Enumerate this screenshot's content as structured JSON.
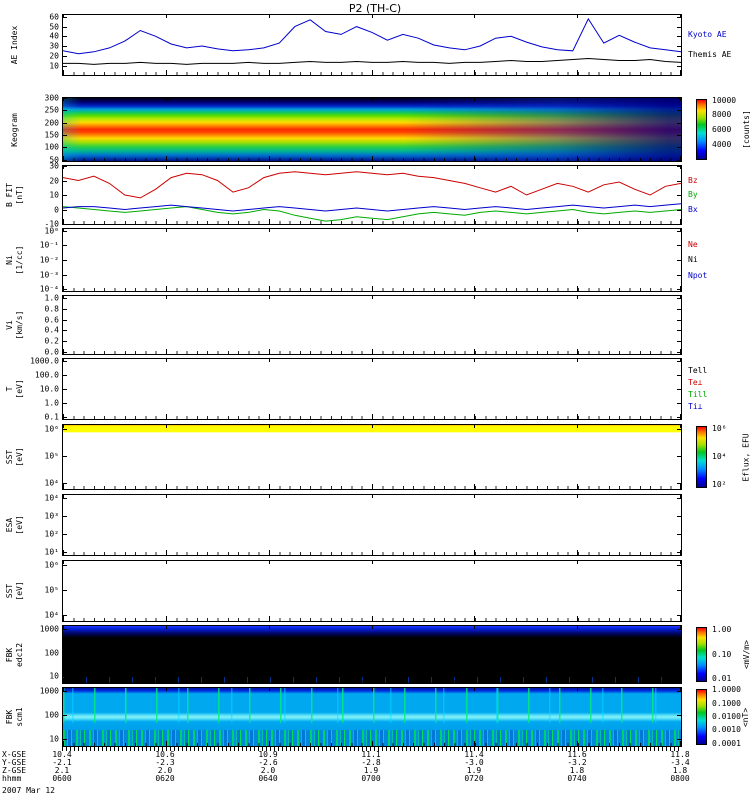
{
  "title": "P2 (TH-C)",
  "footer_date": "2007 Mar 12",
  "x_axis": {
    "ticks": [
      "0600",
      "0620",
      "0640",
      "0700",
      "0720",
      "0740",
      "0800"
    ],
    "time_row_label": "hhmm",
    "coordinate_rows": [
      {
        "label": "X-GSE",
        "values": [
          "10.4",
          "10.6",
          "10.9",
          "11.1",
          "11.4",
          "11.6",
          "11.8"
        ]
      },
      {
        "label": "Y-GSE",
        "values": [
          "-2.1",
          "-2.3",
          "-2.6",
          "-2.8",
          "-3.0",
          "-3.2",
          "-3.4"
        ]
      },
      {
        "label": "Z-GSE",
        "values": [
          "2.1",
          "2.0",
          "2.0",
          "1.9",
          "1.9",
          "1.8",
          "1.8"
        ]
      }
    ]
  },
  "colors": {
    "kyoto_ae": "#0000cc",
    "themis_ae": "#000000",
    "bz": "#cc0000",
    "by": "#00aa00",
    "bx": "#0000cc",
    "spectrogram_scale": [
      "#000090",
      "#0000ff",
      "#0090ff",
      "#00e0d0",
      "#00c820",
      "#a0e000",
      "#ffe000",
      "#ff7000",
      "#ff0000"
    ]
  },
  "chart_data": [
    {
      "id": "ae",
      "type": "line",
      "ylabel": [
        "AE Index"
      ],
      "yticks": [
        "60",
        "50",
        "40",
        "30",
        "20",
        "10"
      ],
      "ytick_span": [
        0.03,
        0.85
      ],
      "ylim": [
        0,
        62
      ],
      "x_range_hhmm": [
        "0600",
        "0800"
      ],
      "legend": [
        {
          "text": "Kyoto AE",
          "color": "#0000cc"
        },
        {
          "text": "Themis AE",
          "color": "#000000"
        }
      ],
      "series": [
        {
          "name": "Kyoto AE",
          "color": "#0000cc",
          "values": [
            25,
            22,
            24,
            28,
            35,
            46,
            40,
            32,
            28,
            30,
            27,
            25,
            26,
            28,
            33,
            50,
            57,
            45,
            42,
            50,
            44,
            36,
            42,
            38,
            31,
            28,
            26,
            30,
            38,
            40,
            34,
            29,
            26,
            25,
            58,
            33,
            41,
            34,
            28,
            26,
            24
          ]
        },
        {
          "name": "Themis AE",
          "color": "#000000",
          "values": [
            12,
            12,
            11,
            12,
            12,
            13,
            12,
            12,
            11,
            12,
            12,
            12,
            13,
            12,
            12,
            13,
            14,
            13,
            13,
            14,
            13,
            13,
            14,
            13,
            13,
            12,
            13,
            13,
            14,
            15,
            14,
            14,
            15,
            16,
            17,
            16,
            15,
            15,
            16,
            14,
            13
          ]
        }
      ]
    },
    {
      "id": "keogram",
      "type": "heatmap",
      "ylabel": [
        "Keogram"
      ],
      "yticks": [
        "300",
        "250",
        "200",
        "150",
        "100",
        "50"
      ],
      "ytick_span": [
        0,
        0.98
      ],
      "colorbar": {
        "ticks": [
          "10000",
          "8000",
          "6000",
          "4000"
        ],
        "tick_span": [
          0.03,
          0.75
        ],
        "label": "[counts]"
      },
      "heatmap": {
        "units": "counts",
        "x_bins": [
          "0600",
          "0620",
          "0640",
          "0700",
          "0720",
          "0740",
          "0800"
        ],
        "y_bins": [
          250,
          200,
          150,
          100
        ],
        "values": [
          [
            4000,
            5000,
            9000,
            9500,
            8000,
            6000,
            4500
          ],
          [
            9000,
            9500,
            10000,
            9800,
            9000,
            7000,
            5000
          ],
          [
            8000,
            8500,
            8000,
            7000,
            6500,
            6000,
            4500
          ],
          [
            5000,
            5500,
            5000,
            4800,
            4500,
            4200,
            4000
          ]
        ],
        "note": "bright auroral band 130-240 with red core ~10000 counts fading toward 0800; dark blue background ~3500 counts"
      }
    },
    {
      "id": "bfit",
      "type": "line",
      "ylabel": [
        "B FIT",
        "[nT]"
      ],
      "yticks": [
        "30",
        "20",
        "10",
        "0",
        "-10"
      ],
      "ytick_span": [
        0,
        1
      ],
      "ylim": [
        -10,
        30
      ],
      "legend": [
        {
          "text": "Bz",
          "color": "#cc0000"
        },
        {
          "text": "By",
          "color": "#00aa00"
        },
        {
          "text": "Bx",
          "color": "#0000cc"
        }
      ],
      "series": [
        {
          "name": "Bz",
          "color": "#cc0000",
          "values": [
            22,
            20,
            23,
            18,
            10,
            8,
            14,
            22,
            25,
            24,
            20,
            12,
            15,
            22,
            25,
            26,
            25,
            24,
            25,
            26,
            25,
            24,
            25,
            23,
            22,
            20,
            18,
            15,
            12,
            16,
            10,
            14,
            18,
            16,
            12,
            17,
            19,
            14,
            10,
            16,
            18
          ]
        },
        {
          "name": "By",
          "color": "#00aa00",
          "values": [
            2,
            1,
            0,
            -1,
            -2,
            -1,
            0,
            1,
            2,
            0,
            -2,
            -3,
            -2,
            0,
            -1,
            -4,
            -6,
            -8,
            -7,
            -5,
            -6,
            -7,
            -5,
            -3,
            -2,
            -3,
            -4,
            -2,
            -1,
            -2,
            -3,
            -2,
            -1,
            0,
            -2,
            -3,
            -2,
            -1,
            -2,
            -1,
            0
          ]
        },
        {
          "name": "Bx",
          "color": "#0000cc",
          "values": [
            1,
            2,
            2,
            1,
            0,
            1,
            2,
            3,
            2,
            1,
            0,
            -1,
            0,
            1,
            2,
            1,
            0,
            -1,
            0,
            1,
            0,
            -1,
            0,
            1,
            2,
            1,
            0,
            1,
            2,
            1,
            0,
            1,
            2,
            3,
            2,
            1,
            2,
            3,
            2,
            3,
            4
          ]
        }
      ]
    },
    {
      "id": "ni",
      "type": "line",
      "ylabel": [
        "Ni",
        "[1/cc]"
      ],
      "yticks": [
        "10⁰",
        "10⁻¹",
        "10⁻²",
        "10⁻³",
        "10⁻⁴"
      ],
      "ytick_span": [
        0.03,
        0.97
      ],
      "ylim": [
        0,
        1
      ],
      "legend": [
        {
          "text": "Ne",
          "color": "#cc0000"
        },
        {
          "text": "Ni",
          "color": "#000000"
        },
        {
          "text": "Npot",
          "color": "#0000cc"
        }
      ],
      "series": [],
      "note": "no data plotted in interval"
    },
    {
      "id": "vi",
      "type": "line",
      "ylabel": [
        "Vi",
        "[km/s]"
      ],
      "yticks": [
        "1.0",
        "0.8",
        "0.6",
        "0.4",
        "0.2",
        "0.0"
      ],
      "ytick_span": [
        0.03,
        0.97
      ],
      "ylim": [
        0,
        1
      ],
      "series": [],
      "note": "no data plotted in interval"
    },
    {
      "id": "temp",
      "type": "line",
      "ylabel": [
        "T",
        "[eV]"
      ],
      "yticks": [
        "1000.0",
        "100.0",
        "10.0",
        "1.0",
        "0.1"
      ],
      "ytick_span": [
        0.04,
        0.96
      ],
      "ylim": [
        0,
        1
      ],
      "legend": [
        {
          "text": "Tell",
          "color": "#000000"
        },
        {
          "text": "Te⊥",
          "color": "#cc0000"
        },
        {
          "text": "Till",
          "color": "#00aa00"
        },
        {
          "text": "Ti⊥",
          "color": "#0000cc"
        }
      ],
      "series": [],
      "note": "no data plotted in interval"
    },
    {
      "id": "sst1",
      "type": "heatmap",
      "ylabel": [
        "SST",
        "[eV]"
      ],
      "yticks": [
        "10⁶",
        "10⁵",
        "10⁴"
      ],
      "ytick_span": [
        0.06,
        0.9
      ],
      "colorbar": {
        "ticks": [
          "10⁶",
          "10⁴",
          "10²"
        ],
        "tick_span": [
          0.05,
          0.95
        ],
        "label": "Eflux, EFU"
      },
      "heatmap": {
        "features": [
          {
            "type": "band",
            "y": "top",
            "color": "#ffff00",
            "note": "solid yellow stripe across entire interval at top energy bin"
          }
        ]
      }
    },
    {
      "id": "esa",
      "type": "heatmap",
      "ylabel": [
        "ESA",
        "[eV]"
      ],
      "yticks": [
        "10⁴",
        "10³",
        "10²",
        "10¹"
      ],
      "ytick_span": [
        0.05,
        0.95
      ],
      "heatmap": {
        "features": [],
        "note": "empty panel - no data"
      }
    },
    {
      "id": "sst2",
      "type": "heatmap",
      "ylabel": [
        "SST",
        "[eV]"
      ],
      "yticks": [
        "10⁶",
        "10⁵",
        "10⁴"
      ],
      "ytick_span": [
        0.06,
        0.9
      ],
      "heatmap": {
        "features": [],
        "note": "empty panel - no data"
      }
    },
    {
      "id": "fbk1",
      "type": "heatmap",
      "ylabel": [
        "FBK",
        "edc12"
      ],
      "yticks": [
        "1000",
        "100",
        "10"
      ],
      "ytick_span": [
        0.05,
        0.88
      ],
      "colorbar": {
        "ticks": [
          "1.00",
          "0.10",
          "0.01"
        ],
        "tick_span": [
          0.05,
          0.95
        ],
        "label": "<mV/m>"
      },
      "heatmap": {
        "features": [
          {
            "type": "band",
            "y": "top",
            "color": "#0000cc",
            "note": "blue band ~0.05 mV/m in highest frequency bins"
          },
          {
            "type": "background",
            "color": "#000000",
            "note": "black below threshold elsewhere"
          }
        ]
      }
    },
    {
      "id": "fbk2",
      "type": "heatmap",
      "ylabel": [
        "FBK",
        "scm1"
      ],
      "yticks": [
        "1000",
        "100",
        "10"
      ],
      "ytick_span": [
        0.05,
        0.88
      ],
      "colorbar": {
        "ticks": [
          "1.0000",
          "0.1000",
          "0.0100",
          "0.0010",
          "0.0001"
        ],
        "tick_span": [
          0.02,
          0.98
        ],
        "label": "<nT>"
      },
      "heatmap": {
        "features": [
          {
            "type": "background",
            "color": "#00a8f0",
            "note": "cyan broadband ~0.001 nT"
          },
          {
            "type": "vertical-bursts",
            "color": "#00ee66",
            "note": "intermittent green burst stripes, densest 0610-0650"
          },
          {
            "type": "band",
            "y": "bottom",
            "color": "#00cc88",
            "note": "speckled enhancement at lowest frequencies"
          }
        ]
      }
    }
  ]
}
